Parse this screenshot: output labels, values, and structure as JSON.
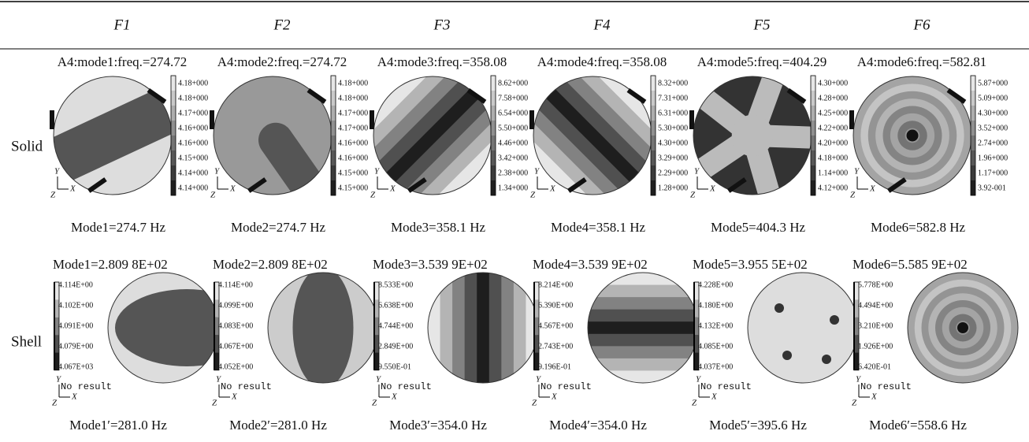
{
  "columns": [
    "F1",
    "F2",
    "F3",
    "F4",
    "F5",
    "F6"
  ],
  "axes": {
    "x": "X",
    "y": "Y",
    "z": "Z"
  },
  "rows": [
    {
      "label": "Solid",
      "panels": [
        {
          "title": "A4:mode1:freq.=274.72",
          "legend": [
            "4.18+000",
            "4.18+000",
            "4.17+000",
            "4.16+000",
            "4.16+000",
            "4.15+000",
            "4.14+000",
            "4.14+000"
          ],
          "caption": "Mode1=274.7 Hz"
        },
        {
          "title": "A4:mode2:freq.=274.72",
          "legend": [
            "4.18+000",
            "4.18+000",
            "4.17+000",
            "4.17+000",
            "4.16+000",
            "4.16+000",
            "4.15+000",
            "4.15+000"
          ],
          "caption": "Mode2=274.7 Hz"
        },
        {
          "title": "A4:mode3:freq.=358.08",
          "legend": [
            "8.62+000",
            "7.58+000",
            "6.54+000",
            "5.50+000",
            "4.46+000",
            "3.42+000",
            "2.38+000",
            "1.34+000"
          ],
          "caption": "Mode3=358.1 Hz"
        },
        {
          "title": "A4:mode4:freq.=358.08",
          "legend": [
            "8.32+000",
            "7.31+000",
            "6.31+000",
            "5.30+000",
            "4.30+000",
            "3.29+000",
            "2.29+000",
            "1.28+000"
          ],
          "caption": "Mode4=358.1 Hz"
        },
        {
          "title": "A4:mode5:freq.=404.29",
          "legend": [
            "4.30+000",
            "4.28+000",
            "4.25+000",
            "4.22+000",
            "4.20+000",
            "4.18+000",
            "1.14+000",
            "4.12+000"
          ],
          "caption": "Mode5=404.3 Hz"
        },
        {
          "title": "A4:mode6:freq.=582.81",
          "legend": [
            "5.87+000",
            "5.09+000",
            "4.30+000",
            "3.52+000",
            "2.74+000",
            "1.96+000",
            "1.17+000",
            "3.92-001"
          ],
          "caption": "Mode6=582.8 Hz"
        }
      ]
    },
    {
      "label": "Shell",
      "panels": [
        {
          "title": "Mode1=2.809 8E+02",
          "legend": [
            "4.114E+00",
            "4.102E+00",
            "4.091E+00",
            "4.079E+00",
            "4.067E+03"
          ],
          "note": "No result",
          "caption": "Mode1′=281.0 Hz"
        },
        {
          "title": "Mode2=2.809 8E+02",
          "legend": [
            "4.114E+00",
            "4.099E+00",
            "4.083E+00",
            "4.067E+00",
            "4.052E+00"
          ],
          "note": "No result",
          "caption": "Mode2′=281.0 Hz"
        },
        {
          "title": "Mode3=3.539 9E+02",
          "legend": [
            "8.533E+00",
            "6.638E+00",
            "4.744E+00",
            "2.849E+00",
            "9.550E-01"
          ],
          "note": "No result",
          "caption": "Mode3′=354.0 Hz"
        },
        {
          "title": "Mode4=3.539 9E+02",
          "legend": [
            "8.214E+00",
            "6.390E+00",
            "4.567E+00",
            "2.743E+00",
            "9.196E-01"
          ],
          "note": "No result",
          "caption": "Mode4′=354.0 Hz"
        },
        {
          "title": "Mode5=3.955 5E+02",
          "legend": [
            "4.228E+00",
            "4.180E+00",
            "4.132E+00",
            "4.085E+00",
            "4.037E+00"
          ],
          "note": "No result",
          "caption": "Mode5′=395.6 Hz"
        },
        {
          "title": "Mode6=5.585 9E+02",
          "legend": [
            "5.778E+00",
            "4.494E+00",
            "3.210E+00",
            "1.926E+00",
            "6.420E-01"
          ],
          "note": "No result",
          "caption": "Mode6′=558.6 Hz"
        }
      ]
    }
  ]
}
